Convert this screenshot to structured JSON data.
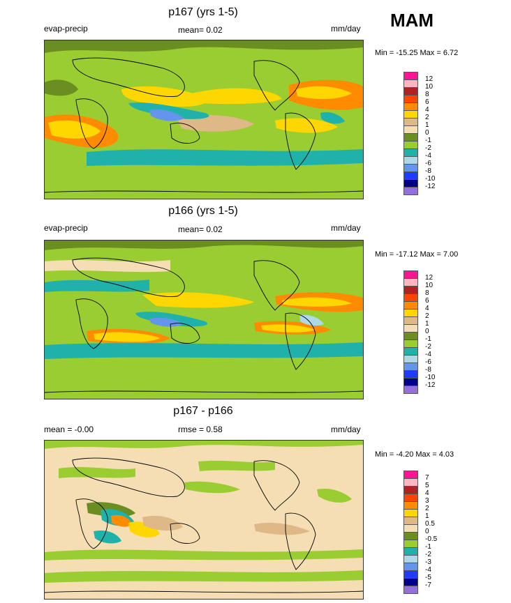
{
  "season": "MAM",
  "panels": [
    {
      "title": "p167 (yrs 1-5)",
      "left_label": "evap-precip",
      "center_label": "mean=  0.02",
      "units": "mm/day",
      "minmax": "Min = -15.25 Max =   6.72",
      "levels": [
        "12",
        "10",
        "8",
        "6",
        "4",
        "2",
        "1",
        "0",
        "-1",
        "-2",
        "-4",
        "-6",
        "-8",
        "-10",
        "-12"
      ],
      "colors": [
        "#ff1493",
        "#ffb6c1",
        "#b22222",
        "#ff4500",
        "#ff8c00",
        "#ffd700",
        "#deb887",
        "#f5deb3",
        "#6b8e23",
        "#9acd32",
        "#20b2aa",
        "#add8e6",
        "#6495ed",
        "#1e3cff",
        "#00008b",
        "#9370db"
      ]
    },
    {
      "title": "p166 (yrs 1-5)",
      "left_label": "evap-precip",
      "center_label": "mean=  0.02",
      "units": "mm/day",
      "minmax": "Min = -17.12 Max =   7.00",
      "levels": [
        "12",
        "10",
        "8",
        "6",
        "4",
        "2",
        "1",
        "0",
        "-1",
        "-2",
        "-4",
        "-6",
        "-8",
        "-10",
        "-12"
      ],
      "colors": [
        "#ff1493",
        "#ffb6c1",
        "#b22222",
        "#ff4500",
        "#ff8c00",
        "#ffd700",
        "#deb887",
        "#f5deb3",
        "#6b8e23",
        "#9acd32",
        "#20b2aa",
        "#add8e6",
        "#6495ed",
        "#1e3cff",
        "#00008b",
        "#9370db"
      ]
    },
    {
      "title": "p167 - p166",
      "left_label": "mean =  -0.00",
      "center_label": "rmse =   0.58",
      "units": "mm/day",
      "minmax": "Min =  -4.20 Max =   4.03",
      "levels": [
        "7",
        "5",
        "4",
        "3",
        "2",
        "1",
        "0.5",
        "0",
        "-0.5",
        "-1",
        "-2",
        "-3",
        "-4",
        "-5",
        "-7"
      ],
      "colors": [
        "#ff1493",
        "#ffb6c1",
        "#b22222",
        "#ff4500",
        "#ff8c00",
        "#ffd700",
        "#deb887",
        "#f5deb3",
        "#6b8e23",
        "#9acd32",
        "#20b2aa",
        "#add8e6",
        "#6495ed",
        "#1e3cff",
        "#00008b",
        "#9370db"
      ]
    }
  ]
}
